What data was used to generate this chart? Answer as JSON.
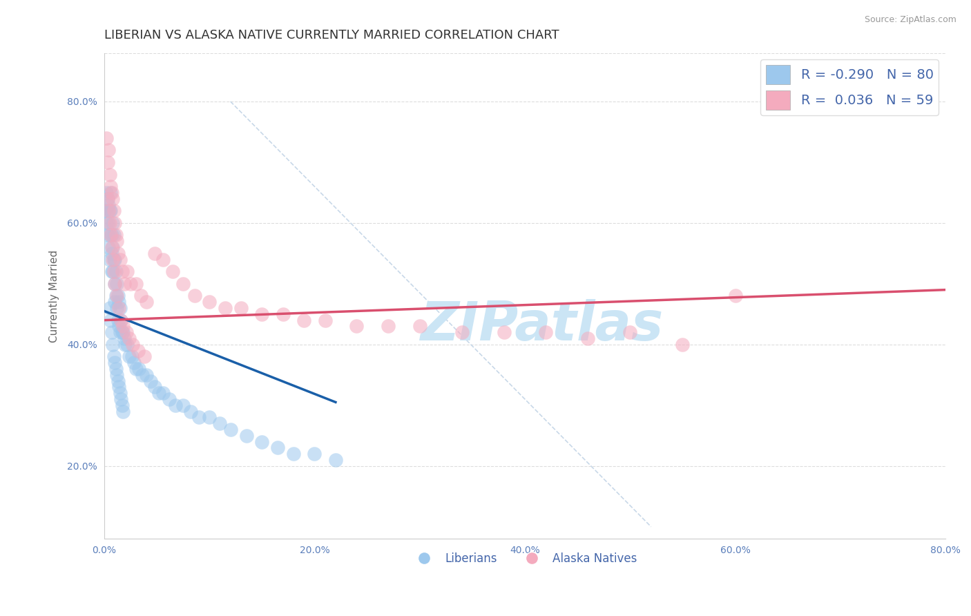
{
  "title": "LIBERIAN VS ALASKA NATIVE CURRENTLY MARRIED CORRELATION CHART",
  "source_text": "Source: ZipAtlas.com",
  "xlabel": "",
  "ylabel": "Currently Married",
  "xlim": [
    0.0,
    0.8
  ],
  "ylim": [
    0.08,
    0.88
  ],
  "xtick_labels": [
    "0.0%",
    "20.0%",
    "40.0%",
    "60.0%",
    "80.0%"
  ],
  "xtick_vals": [
    0.0,
    0.2,
    0.4,
    0.6,
    0.8
  ],
  "ytick_labels": [
    "20.0%",
    "40.0%",
    "60.0%",
    "80.0%"
  ],
  "ytick_vals": [
    0.2,
    0.4,
    0.6,
    0.8
  ],
  "blue_R": -0.29,
  "blue_N": 80,
  "pink_R": 0.036,
  "pink_N": 59,
  "blue_color": "#9DC8ED",
  "pink_color": "#F4ABBE",
  "blue_line_color": "#1A5FA8",
  "pink_line_color": "#D94F6E",
  "diag_line_color": "#C8D8E8",
  "background_color": "#FFFFFF",
  "grid_color": "#DDDDDD",
  "watermark_text": "ZIPatlas",
  "watermark_color": "#CBE5F5",
  "legend_blue_label": "Liberians",
  "legend_pink_label": "Alaska Natives",
  "title_fontsize": 13,
  "axis_label_fontsize": 11,
  "tick_fontsize": 10,
  "blue_scatter_x": [
    0.001,
    0.002,
    0.002,
    0.003,
    0.003,
    0.003,
    0.004,
    0.004,
    0.004,
    0.005,
    0.005,
    0.005,
    0.006,
    0.006,
    0.007,
    0.007,
    0.007,
    0.008,
    0.008,
    0.008,
    0.009,
    0.009,
    0.01,
    0.01,
    0.01,
    0.011,
    0.011,
    0.012,
    0.012,
    0.013,
    0.013,
    0.014,
    0.014,
    0.015,
    0.015,
    0.016,
    0.017,
    0.018,
    0.019,
    0.02,
    0.022,
    0.024,
    0.026,
    0.028,
    0.03,
    0.033,
    0.036,
    0.04,
    0.044,
    0.048,
    0.052,
    0.056,
    0.062,
    0.068,
    0.075,
    0.082,
    0.09,
    0.1,
    0.11,
    0.12,
    0.135,
    0.15,
    0.165,
    0.18,
    0.2,
    0.22,
    0.005,
    0.006,
    0.007,
    0.008,
    0.009,
    0.01,
    0.011,
    0.012,
    0.013,
    0.014,
    0.015,
    0.016,
    0.017,
    0.018
  ],
  "blue_scatter_y": [
    0.62,
    0.65,
    0.6,
    0.64,
    0.58,
    0.62,
    0.63,
    0.6,
    0.56,
    0.62,
    0.58,
    0.54,
    0.65,
    0.62,
    0.58,
    0.55,
    0.52,
    0.6,
    0.56,
    0.52,
    0.58,
    0.54,
    0.54,
    0.5,
    0.47,
    0.52,
    0.48,
    0.5,
    0.46,
    0.48,
    0.44,
    0.47,
    0.43,
    0.46,
    0.42,
    0.44,
    0.42,
    0.42,
    0.41,
    0.4,
    0.4,
    0.38,
    0.38,
    0.37,
    0.36,
    0.36,
    0.35,
    0.35,
    0.34,
    0.33,
    0.32,
    0.32,
    0.31,
    0.3,
    0.3,
    0.29,
    0.28,
    0.28,
    0.27,
    0.26,
    0.25,
    0.24,
    0.23,
    0.22,
    0.22,
    0.21,
    0.46,
    0.44,
    0.42,
    0.4,
    0.38,
    0.37,
    0.36,
    0.35,
    0.34,
    0.33,
    0.32,
    0.31,
    0.3,
    0.29
  ],
  "pink_scatter_x": [
    0.002,
    0.003,
    0.004,
    0.005,
    0.006,
    0.007,
    0.008,
    0.009,
    0.01,
    0.011,
    0.012,
    0.013,
    0.015,
    0.017,
    0.019,
    0.022,
    0.025,
    0.03,
    0.035,
    0.04,
    0.048,
    0.056,
    0.065,
    0.075,
    0.086,
    0.1,
    0.115,
    0.13,
    0.15,
    0.17,
    0.19,
    0.21,
    0.24,
    0.27,
    0.3,
    0.34,
    0.38,
    0.42,
    0.46,
    0.5,
    0.003,
    0.004,
    0.005,
    0.006,
    0.007,
    0.008,
    0.009,
    0.01,
    0.012,
    0.014,
    0.016,
    0.018,
    0.021,
    0.024,
    0.027,
    0.032,
    0.038,
    0.55,
    0.6
  ],
  "pink_scatter_y": [
    0.74,
    0.7,
    0.72,
    0.68,
    0.66,
    0.65,
    0.64,
    0.62,
    0.6,
    0.58,
    0.57,
    0.55,
    0.54,
    0.52,
    0.5,
    0.52,
    0.5,
    0.5,
    0.48,
    0.47,
    0.55,
    0.54,
    0.52,
    0.5,
    0.48,
    0.47,
    0.46,
    0.46,
    0.45,
    0.45,
    0.44,
    0.44,
    0.43,
    0.43,
    0.43,
    0.42,
    0.42,
    0.42,
    0.41,
    0.42,
    0.64,
    0.62,
    0.6,
    0.58,
    0.56,
    0.54,
    0.52,
    0.5,
    0.48,
    0.46,
    0.44,
    0.43,
    0.42,
    0.41,
    0.4,
    0.39,
    0.38,
    0.4,
    0.48
  ],
  "blue_trend_x": [
    0.0,
    0.22
  ],
  "blue_trend_y": [
    0.455,
    0.305
  ],
  "pink_trend_x": [
    0.0,
    0.8
  ],
  "pink_trend_y": [
    0.44,
    0.49
  ]
}
